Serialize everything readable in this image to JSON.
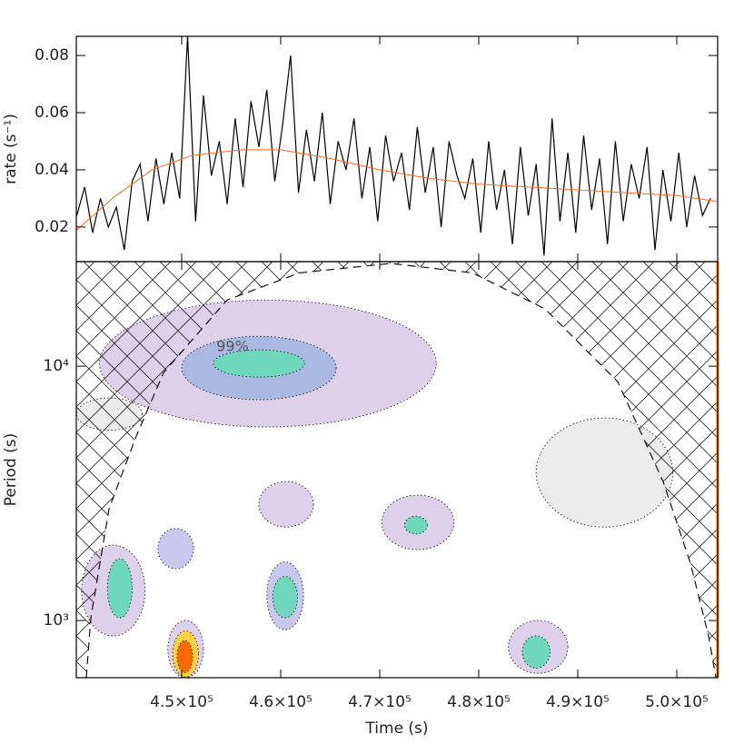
{
  "chart_data": [
    {
      "type": "line",
      "ylabel": "rate (s⁻¹)",
      "xlim": [
        439358,
        504128
      ],
      "ylim": [
        0.0079,
        0.0867
      ],
      "yticks": [
        0.02,
        0.04,
        0.06,
        0.08
      ],
      "series": [
        {
          "color": "#000000",
          "x": [
            439400,
            440200,
            441000,
            441800,
            442600,
            443400,
            444200,
            445000,
            445800,
            446600,
            447400,
            448200,
            449000,
            449800,
            450600,
            451400,
            452200,
            453000,
            453800,
            454600,
            455400,
            456200,
            457000,
            457800,
            458600,
            459400,
            460200,
            461000,
            461800,
            462600,
            463400,
            464200,
            465000,
            465800,
            466600,
            467400,
            468200,
            469000,
            469800,
            470600,
            471400,
            472200,
            473000,
            473800,
            474600,
            475400,
            476200,
            477000,
            477800,
            478600,
            479400,
            480200,
            481000,
            481800,
            482600,
            483400,
            484200,
            485000,
            485800,
            486600,
            487400,
            488200,
            489000,
            489800,
            490600,
            491400,
            492200,
            493000,
            493800,
            494600,
            495400,
            496200,
            497000,
            497800,
            498600,
            499400,
            500200,
            501000,
            501800,
            502600,
            503400
          ],
          "values": [
            0.024,
            0.034,
            0.018,
            0.03,
            0.02,
            0.027,
            0.012,
            0.036,
            0.042,
            0.022,
            0.044,
            0.028,
            0.046,
            0.03,
            0.087,
            0.022,
            0.066,
            0.038,
            0.05,
            0.028,
            0.058,
            0.034,
            0.064,
            0.048,
            0.068,
            0.036,
            0.056,
            0.08,
            0.032,
            0.054,
            0.036,
            0.06,
            0.028,
            0.05,
            0.04,
            0.058,
            0.03,
            0.048,
            0.022,
            0.052,
            0.036,
            0.046,
            0.026,
            0.055,
            0.032,
            0.048,
            0.02,
            0.05,
            0.038,
            0.03,
            0.044,
            0.018,
            0.05,
            0.026,
            0.04,
            0.014,
            0.048,
            0.024,
            0.042,
            0.01,
            0.058,
            0.022,
            0.046,
            0.018,
            0.052,
            0.026,
            0.044,
            0.014,
            0.05,
            0.022,
            0.042,
            0.03,
            0.048,
            0.012,
            0.04,
            0.022,
            0.046,
            0.02,
            0.038,
            0.024,
            0.03
          ]
        },
        {
          "color": "#ff6a1a",
          "x": [
            439400,
            443000,
            447000,
            451000,
            456000,
            460000,
            465000,
            470000,
            475000,
            480000,
            485000,
            490000,
            495000,
            500000,
            504000
          ],
          "values": [
            0.019,
            0.03,
            0.04,
            0.045,
            0.047,
            0.047,
            0.044,
            0.04,
            0.037,
            0.035,
            0.034,
            0.033,
            0.032,
            0.031,
            0.029
          ]
        }
      ]
    },
    {
      "type": "wavelet",
      "xlabel": "Time (s)",
      "ylabel": "Period (s)",
      "annotation": "99%",
      "xlim": [
        439358,
        504128
      ],
      "ylim": [
        596,
        25770
      ],
      "log_scale": true,
      "xticks": [
        {
          "value": 450000,
          "label": "4.5×10⁵"
        },
        {
          "value": 460000,
          "label": "4.6×10⁵"
        },
        {
          "value": 470000,
          "label": "4.7×10⁵"
        },
        {
          "value": 480000,
          "label": "4.8×10⁵"
        },
        {
          "value": 490000,
          "label": "4.9×10⁵"
        },
        {
          "value": 500000,
          "label": "5.0×10⁵"
        }
      ],
      "yticks": [
        {
          "value": 1000,
          "label": "10³"
        },
        {
          "value": 10000,
          "label": "10⁴"
        }
      ],
      "coi": {
        "x": [
          440370,
          440830,
          442660,
          445410,
          448170,
          454590,
          461930,
          471100,
          479360,
          486700,
          494040,
          498620,
          501380,
          503210,
          503950
        ],
        "values": [
          596,
          1025,
          2750,
          5310,
          9440,
          18220,
          23300,
          25350,
          23300,
          16790,
          8690,
          3520,
          1680,
          869,
          596
        ]
      },
      "regions": [
        {
          "x": [
            439400,
            446000
          ],
          "period": [
            5600,
            7500
          ],
          "color": "#ebebeb"
        },
        {
          "x": [
            441700,
            475700
          ],
          "period": [
            5770,
            18200
          ],
          "color": "#ddd0ea"
        },
        {
          "x": [
            485800,
            499600
          ],
          "period": [
            2330,
            6260
          ],
          "color": "#ebebeb"
        },
        {
          "x": [
            450000,
            465600
          ],
          "period": [
            7380,
            13100
          ],
          "color": "#aab8e2"
        },
        {
          "x": [
            453200,
            462400
          ],
          "period": [
            9060,
            11600
          ],
          "color": "#6fd8bc"
        },
        {
          "x": [
            439900,
            446300
          ],
          "period": [
            870,
            1980
          ],
          "color": "#ddd0ea"
        },
        {
          "x": [
            442500,
            445000
          ],
          "period": [
            1025,
            1750
          ],
          "color": "#6fd8bc"
        },
        {
          "x": [
            447600,
            451200
          ],
          "period": [
            1600,
            2300
          ],
          "color": "#c8c8ec"
        },
        {
          "x": [
            457800,
            463300
          ],
          "period": [
            2330,
            3520
          ],
          "color": "#ddd0ea"
        },
        {
          "x": [
            458600,
            462300
          ],
          "period": [
            920,
            1700
          ],
          "color": "#c8c8ec"
        },
        {
          "x": [
            459200,
            461700
          ],
          "period": [
            1025,
            1490
          ],
          "color": "#6fd8bc"
        },
        {
          "x": [
            470200,
            477500
          ],
          "period": [
            1900,
            3110
          ],
          "color": "#ddd0ea"
        },
        {
          "x": [
            472500,
            474800
          ],
          "period": [
            2190,
            2570
          ],
          "color": "#6fd8bc"
        },
        {
          "x": [
            448600,
            452200
          ],
          "period": [
            596,
            1000
          ],
          "color": "#ddd0ea"
        },
        {
          "x": [
            449100,
            451700
          ],
          "period": [
            600,
            910
          ],
          "color": "#ffd040"
        },
        {
          "x": [
            449540,
            451100
          ],
          "period": [
            625,
            834
          ],
          "color": "#ff6a00"
        },
        {
          "x": [
            483000,
            489000
          ],
          "period": [
            620,
            1000
          ],
          "color": "#ddd0ea"
        },
        {
          "x": [
            484400,
            487200
          ],
          "period": [
            650,
            870
          ],
          "color": "#6fd8bc"
        }
      ]
    }
  ]
}
